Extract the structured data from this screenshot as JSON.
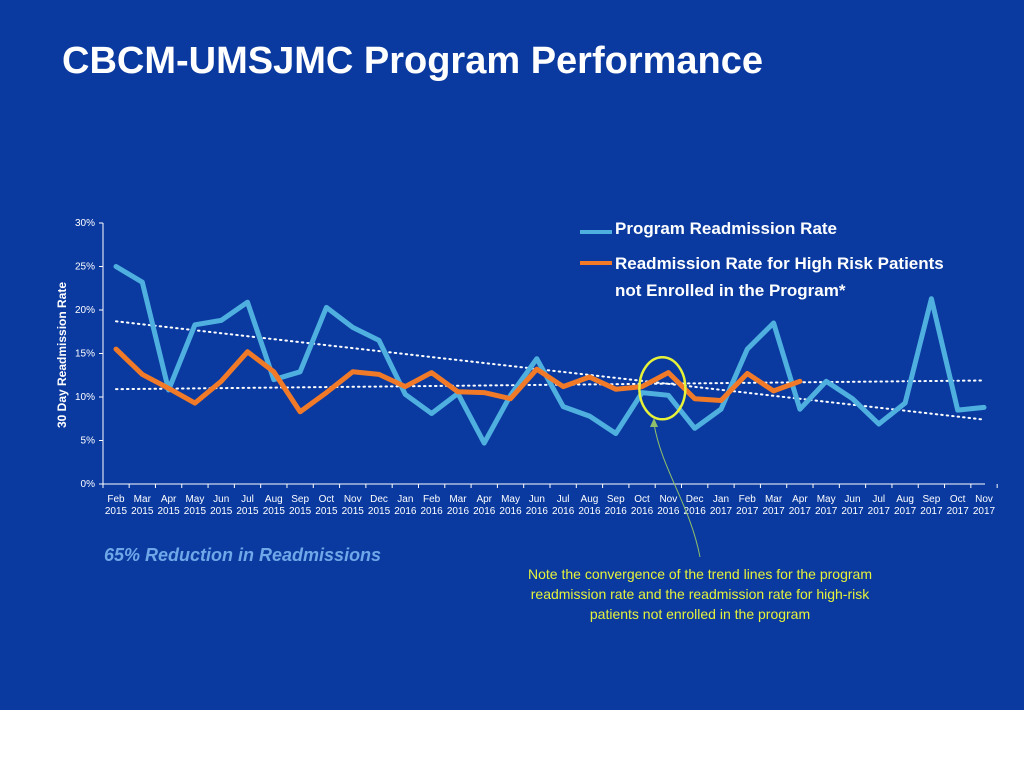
{
  "slide": {
    "title": "CBCM-UMSJMC Program Performance",
    "subtitle": "65% Reduction in Readmissions",
    "note": "Note the convergence of the trend lines for the program readmission rate and the readmission rate for high-risk patients not enrolled in the program"
  },
  "colors": {
    "background": "#0a3aa0",
    "program_series": "#4fb0e0",
    "high_risk_series": "#f07a28",
    "trendline": "#ffffff",
    "highlight_circle": "#e6f23a",
    "note_text": "#e6f23a",
    "subtitle_text": "#6fa8e8"
  },
  "chart_data": {
    "type": "line",
    "title": "",
    "xlabel": "",
    "ylabel": "30 Day Readmission Rate",
    "ylim": [
      0,
      30
    ],
    "yticks": [
      "0%",
      "5%",
      "10%",
      "15%",
      "20%",
      "25%",
      "30%"
    ],
    "grid": false,
    "legend_position": "top-right",
    "categories": [
      [
        "Feb",
        "2015"
      ],
      [
        "Mar",
        "2015"
      ],
      [
        "Apr",
        "2015"
      ],
      [
        "May",
        "2015"
      ],
      [
        "Jun",
        "2015"
      ],
      [
        "Jul",
        "2015"
      ],
      [
        "Aug",
        "2015"
      ],
      [
        "Sep",
        "2015"
      ],
      [
        "Oct",
        "2015"
      ],
      [
        "Nov",
        "2015"
      ],
      [
        "Dec",
        "2015"
      ],
      [
        "Jan",
        "2016"
      ],
      [
        "Feb",
        "2016"
      ],
      [
        "Mar",
        "2016"
      ],
      [
        "Apr",
        "2016"
      ],
      [
        "May",
        "2016"
      ],
      [
        "Jun",
        "2016"
      ],
      [
        "Jul",
        "2016"
      ],
      [
        "Aug",
        "2016"
      ],
      [
        "Sep",
        "2016"
      ],
      [
        "Oct",
        "2016"
      ],
      [
        "Nov",
        "2016"
      ],
      [
        "Dec",
        "2016"
      ],
      [
        "Jan",
        "2017"
      ],
      [
        "Feb",
        "2017"
      ],
      [
        "Mar",
        "2017"
      ],
      [
        "Apr",
        "2017"
      ],
      [
        "May",
        "2017"
      ],
      [
        "Jun",
        "2017"
      ],
      [
        "Jul",
        "2017"
      ],
      [
        "Aug",
        "2017"
      ],
      [
        "Sep",
        "2017"
      ],
      [
        "Oct",
        "2017"
      ],
      [
        "Nov",
        "2017"
      ]
    ],
    "series": [
      {
        "name": "Program Readmission Rate",
        "values": [
          25.0,
          23.2,
          10.8,
          18.3,
          18.8,
          20.9,
          12.0,
          12.9,
          20.3,
          18.0,
          16.5,
          10.3,
          8.1,
          10.4,
          4.7,
          10.2,
          14.4,
          8.9,
          7.8,
          5.8,
          10.5,
          10.2,
          6.4,
          8.6,
          15.5,
          18.5,
          8.6,
          11.8,
          9.8,
          6.9,
          9.3,
          21.3,
          8.5,
          8.8
        ]
      },
      {
        "name": "Readmission Rate for High Risk Patients not Enrolled in the Program*",
        "values": [
          15.5,
          12.6,
          11.0,
          9.3,
          11.8,
          15.2,
          12.9,
          8.3,
          10.5,
          12.9,
          12.6,
          11.2,
          12.8,
          10.6,
          10.5,
          9.8,
          13.2,
          11.2,
          12.3,
          10.9,
          11.2,
          12.8,
          9.8,
          9.6,
          12.7,
          10.7,
          11.8,
          null,
          null,
          null,
          null,
          null,
          null,
          null
        ]
      }
    ],
    "trendlines": [
      {
        "series": "Program Readmission Rate",
        "start": 18.7,
        "end": 7.4
      },
      {
        "series": "Readmission Rate for High Risk Patients not Enrolled in the Program*",
        "start": 10.9,
        "end": 11.9
      }
    ],
    "annotation": {
      "category_index": 21,
      "value": 11.0
    }
  }
}
